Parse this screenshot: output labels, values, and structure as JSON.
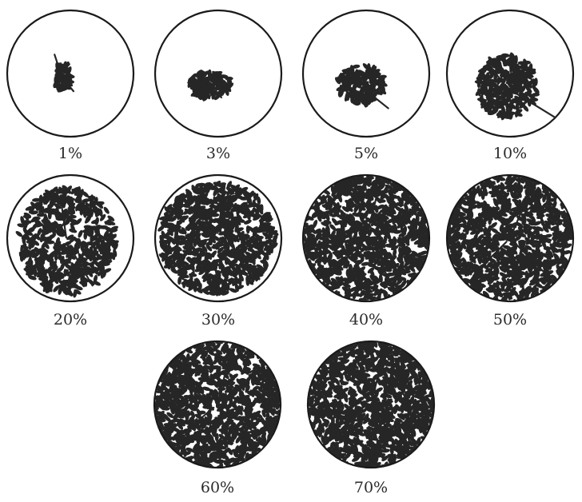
{
  "panels": [
    {
      "label": "1%",
      "coverage": 0.01
    },
    {
      "label": "3%",
      "coverage": 0.03
    },
    {
      "label": "5%",
      "coverage": 0.05
    },
    {
      "label": "10%",
      "coverage": 0.1
    },
    {
      "label": "20%",
      "coverage": 0.2
    },
    {
      "label": "30%",
      "coverage": 0.3
    },
    {
      "label": "40%",
      "coverage": 0.4
    },
    {
      "label": "50%",
      "coverage": 0.5
    },
    {
      "label": "60%",
      "coverage": 0.6
    },
    {
      "label": "70%",
      "coverage": 0.7
    }
  ],
  "colors": {
    "foliage": "#262626",
    "ring": "#1a1a1a",
    "background": "#ffffff"
  }
}
